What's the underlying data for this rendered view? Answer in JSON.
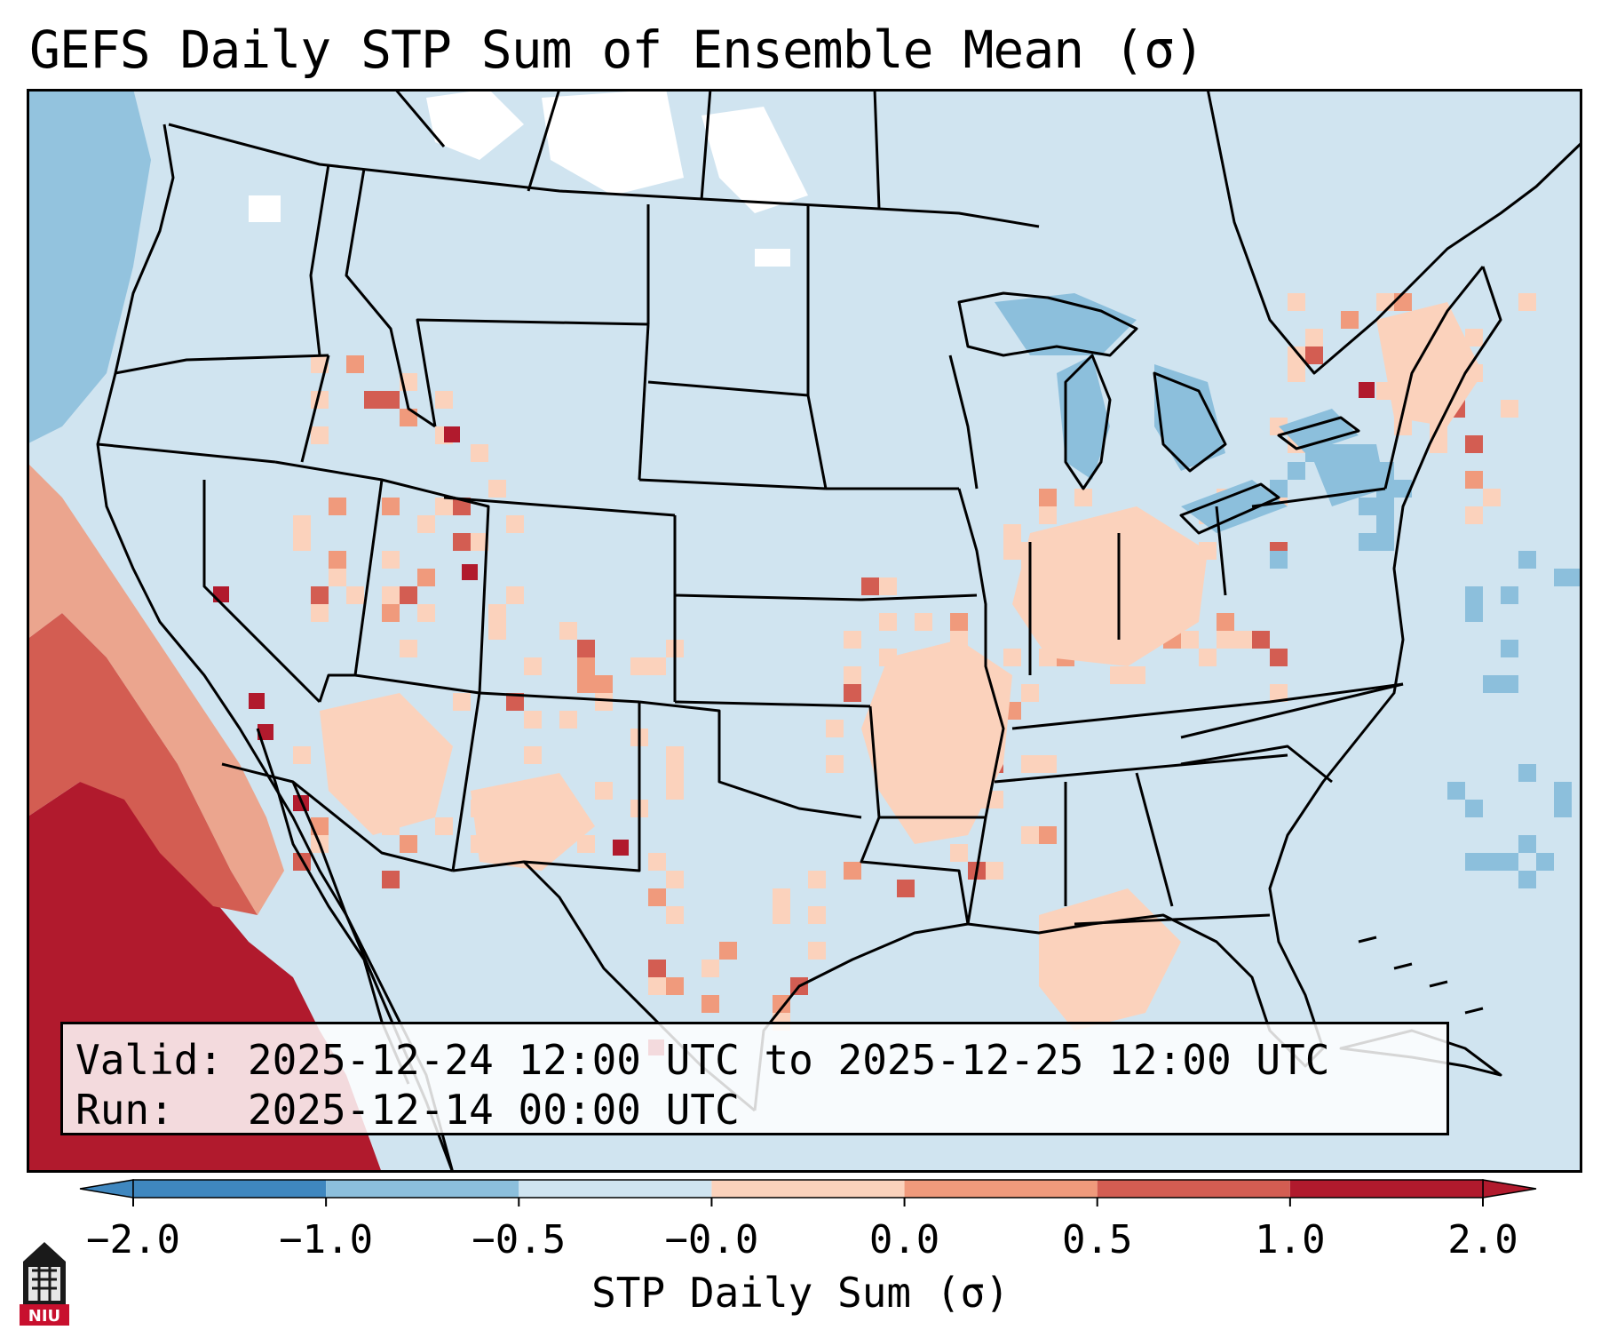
{
  "title": "GEFS Daily STP Sum of Ensemble Mean (σ)",
  "info": {
    "valid_label": "Valid:",
    "valid_value": "2025-12-24 12:00 UTC to 2025-12-25 12:00 UTC",
    "run_label": "Run:",
    "run_value": "2025-12-14 00:00 UTC"
  },
  "colorbar": {
    "label": "STP Daily Sum (σ)",
    "ticks": [
      "−2.0",
      "−1.0",
      "−0.5",
      "−0.0",
      "0.0",
      "0.5",
      "1.0",
      "2.0"
    ],
    "colors": [
      "#3f87bf",
      "#8cbfdc",
      "#d0e4f0",
      "#f7f7f7",
      "#fbd2bc",
      "#f09a7c",
      "#d35d52",
      "#b11a2d"
    ]
  },
  "map": {
    "base_color": "#d0e4f0",
    "white_color": "#ffffff",
    "blue_color": "#8cbfdc",
    "light_red_color": "#fbd2bc",
    "mid_red_color": "#f09a7c",
    "red_color": "#d35d52",
    "dark_red_color": "#b11a2d"
  },
  "logo": {
    "text": "NIU",
    "icon": "niu-logo-icon"
  }
}
